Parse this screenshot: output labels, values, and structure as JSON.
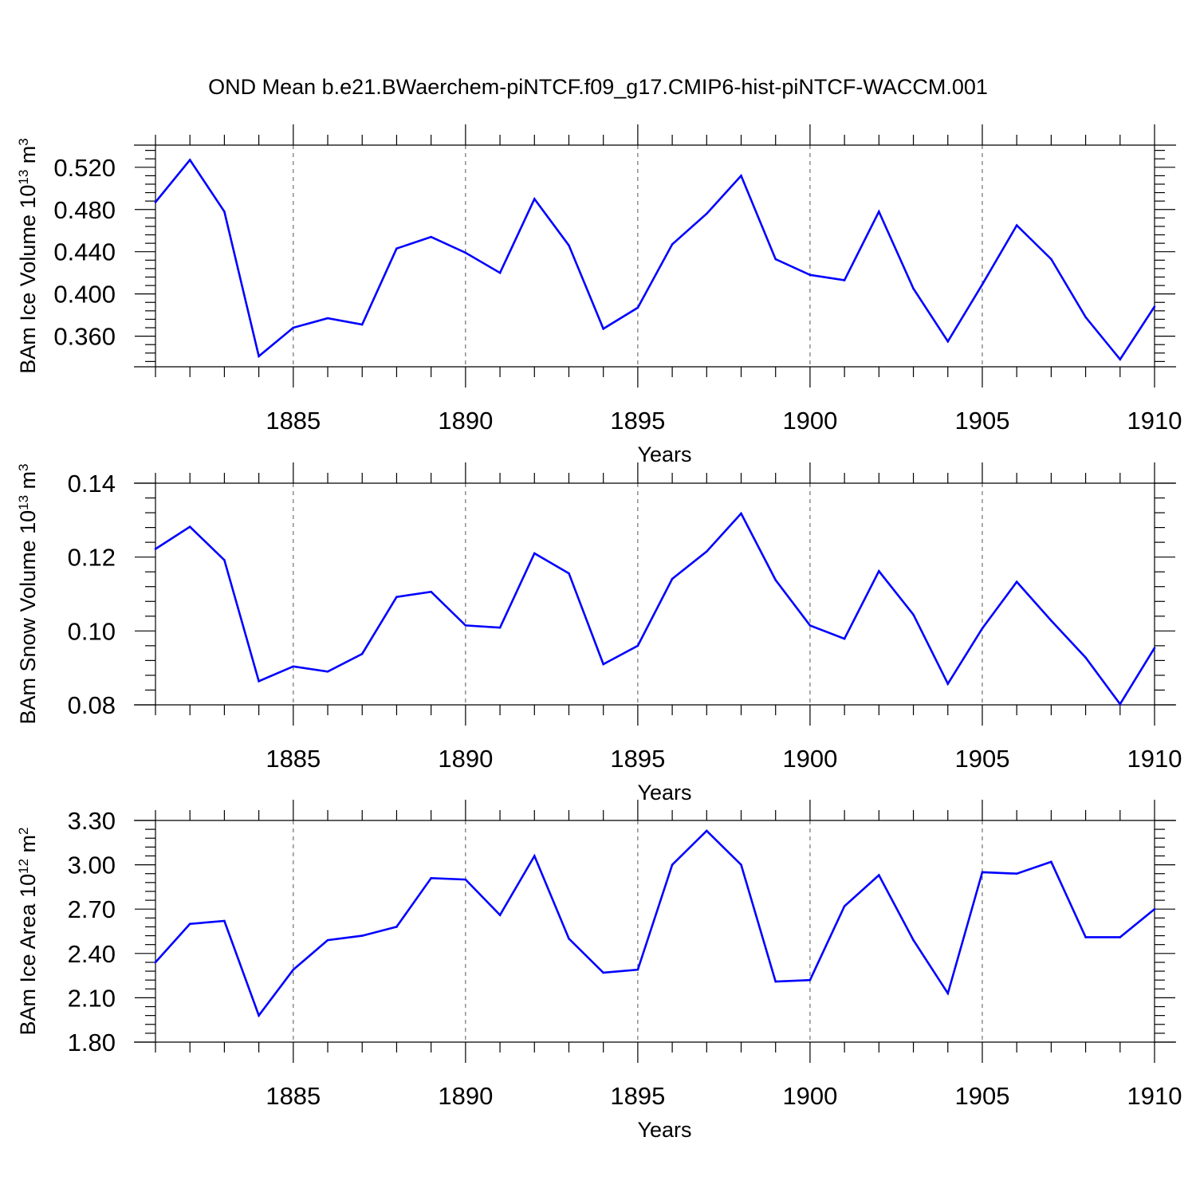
{
  "title": "OND Mean b.e21.BWaerchem-piNTCF.f09_g17.CMIP6-hist-piNTCF-WACCM.001",
  "colors": {
    "line": "#0000ff",
    "axis": "#000000",
    "grid": "#555555"
  },
  "chart_data": [
    {
      "type": "line",
      "ylabel": "BAm Ice Volume 10",
      "ylabel_exp": "13",
      "ylabel_unit": " m",
      "ylabel_unit_exp": "3",
      "xlabel": "Years",
      "xlim": [
        1881,
        1910
      ],
      "ylim": [
        0.331,
        0.541
      ],
      "yticks": [
        0.36,
        0.4,
        0.44,
        0.48,
        0.52
      ],
      "ytick_labels": [
        "0.360",
        "0.400",
        "0.440",
        "0.480",
        "0.520"
      ],
      "xticks": [
        1885,
        1890,
        1895,
        1900,
        1905,
        1910
      ],
      "xtick_labels": [
        "1885",
        "1890",
        "1895",
        "1900",
        "1905",
        "1910"
      ],
      "x": [
        1881,
        1882,
        1883,
        1884,
        1885,
        1886,
        1887,
        1888,
        1889,
        1890,
        1891,
        1892,
        1893,
        1894,
        1895,
        1896,
        1897,
        1898,
        1899,
        1900,
        1901,
        1902,
        1903,
        1904,
        1905,
        1906,
        1907,
        1908,
        1909,
        1910
      ],
      "values": [
        0.487,
        0.527,
        0.478,
        0.341,
        0.368,
        0.377,
        0.371,
        0.443,
        0.454,
        0.439,
        0.42,
        0.49,
        0.446,
        0.367,
        0.387,
        0.447,
        0.476,
        0.512,
        0.433,
        0.418,
        0.413,
        0.478,
        0.405,
        0.355,
        0.409,
        0.465,
        0.433,
        0.378,
        0.338,
        0.388
      ]
    },
    {
      "type": "line",
      "ylabel": "BAm Snow Volume 10",
      "ylabel_exp": "13",
      "ylabel_unit": " m",
      "ylabel_unit_exp": "3",
      "xlabel": "Years",
      "xlim": [
        1881,
        1910
      ],
      "ylim": [
        0.08,
        0.14
      ],
      "yticks": [
        0.08,
        0.1,
        0.12,
        0.14
      ],
      "ytick_labels": [
        "0.08",
        "0.10",
        "0.12",
        "0.14"
      ],
      "xticks": [
        1885,
        1890,
        1895,
        1900,
        1905,
        1910
      ],
      "xtick_labels": [
        "1885",
        "1890",
        "1895",
        "1900",
        "1905",
        "1910"
      ],
      "x": [
        1881,
        1882,
        1883,
        1884,
        1885,
        1886,
        1887,
        1888,
        1889,
        1890,
        1891,
        1892,
        1893,
        1894,
        1895,
        1896,
        1897,
        1898,
        1899,
        1900,
        1901,
        1902,
        1903,
        1904,
        1905,
        1906,
        1907,
        1908,
        1909,
        1910
      ],
      "values": [
        0.1222,
        0.1282,
        0.1192,
        0.0864,
        0.0904,
        0.089,
        0.0938,
        0.1092,
        0.1106,
        0.1015,
        0.1009,
        0.121,
        0.1156,
        0.091,
        0.096,
        0.1141,
        0.1215,
        0.1318,
        0.1138,
        0.1015,
        0.0979,
        0.1162,
        0.1044,
        0.0857,
        0.1007,
        0.1133,
        0.1028,
        0.0928,
        0.0802,
        0.0954
      ]
    },
    {
      "type": "line",
      "ylabel": "BAm Ice Area 10",
      "ylabel_exp": "12",
      "ylabel_unit": " m",
      "ylabel_unit_exp": "2",
      "xlabel": "Years",
      "xlim": [
        1881,
        1910
      ],
      "ylim": [
        1.8,
        3.3
      ],
      "yticks": [
        1.8,
        2.1,
        2.4,
        2.7,
        3.0,
        3.3
      ],
      "ytick_labels": [
        "1.80",
        "2.10",
        "2.40",
        "2.70",
        "3.00",
        "3.30"
      ],
      "xticks": [
        1885,
        1890,
        1895,
        1900,
        1905,
        1910
      ],
      "xtick_labels": [
        "1885",
        "1890",
        "1895",
        "1900",
        "1905",
        "1910"
      ],
      "x": [
        1881,
        1882,
        1883,
        1884,
        1885,
        1886,
        1887,
        1888,
        1889,
        1890,
        1891,
        1892,
        1893,
        1894,
        1895,
        1896,
        1897,
        1898,
        1899,
        1900,
        1901,
        1902,
        1903,
        1904,
        1905,
        1906,
        1907,
        1908,
        1909,
        1910
      ],
      "values": [
        2.34,
        2.6,
        2.62,
        1.98,
        2.29,
        2.49,
        2.52,
        2.58,
        2.91,
        2.9,
        2.66,
        3.06,
        2.5,
        2.27,
        2.29,
        3.0,
        3.23,
        3.0,
        2.21,
        2.22,
        2.72,
        2.93,
        2.49,
        2.13,
        2.95,
        2.94,
        3.02,
        2.51,
        2.51,
        2.7
      ]
    }
  ]
}
